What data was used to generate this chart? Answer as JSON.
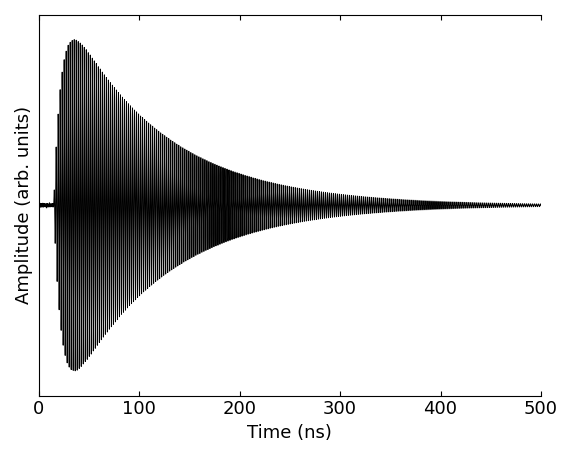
{
  "title": "",
  "xlabel": "Time (ns)",
  "ylabel": "Amplitude (arb. units)",
  "xlim": [
    0,
    500
  ],
  "xticks": [
    0,
    100,
    200,
    300,
    400,
    500
  ],
  "line_color": "#000000",
  "line_width": 0.7,
  "background_color": "#ffffff",
  "signal_params": {
    "t0": 15.0,
    "frequency": 0.5,
    "tau_rise": 8.0,
    "tau_decay": 95.0,
    "n_points": 12000
  },
  "figsize": [
    5.73,
    4.57
  ],
  "dpi": 100,
  "tick_direction": "in",
  "font_size": 13,
  "label_font_size": 13
}
